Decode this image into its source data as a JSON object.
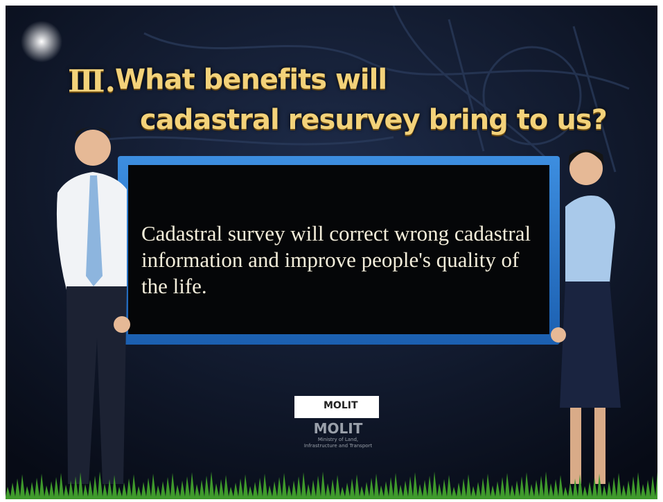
{
  "header": {
    "numeral": "Ⅲ.",
    "title_lines": [
      "What benefits will",
      "cadastral resurvey bring to us?"
    ]
  },
  "board": {
    "text": "Cadastral survey will correct wrong cadastral information and  improve people's quality of the life."
  },
  "logo": {
    "badge": "MOLIT",
    "name": "MOLIT",
    "subtitle_lines": [
      "Ministry of Land,",
      "Infrastructure and Transport"
    ]
  }
}
